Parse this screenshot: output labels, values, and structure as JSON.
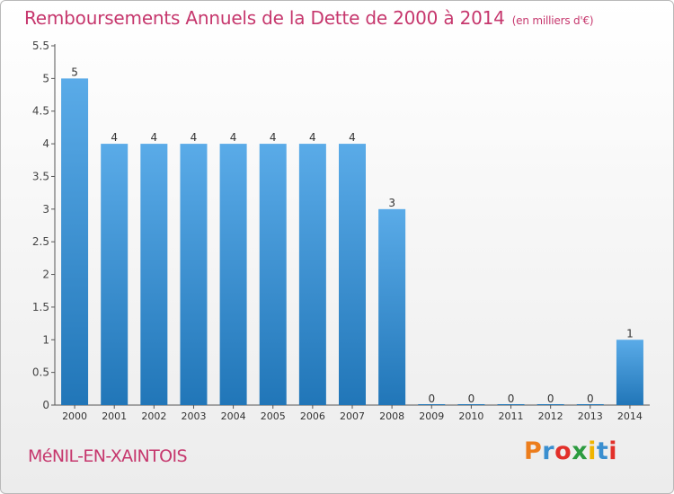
{
  "header": {
    "title": "Remboursements Annuels de la Dette de 2000 à 2014",
    "unit_note": "(en milliers d'€)"
  },
  "footer": {
    "commune": "MéNIL-EN-XAINTOIS",
    "logo_text": "Proxiti",
    "logo_colors": [
      "#ec7d1c",
      "#3a8fd0",
      "#e2302a",
      "#2c9b3f",
      "#f0b400",
      "#3a8fd0",
      "#e2302a"
    ]
  },
  "colors": {
    "bar_top": "#5aabe8",
    "bar_bottom": "#2176b8",
    "title": "#c6376d",
    "axis": "#555555"
  },
  "chart_data": {
    "type": "bar",
    "title": "Remboursements Annuels de la Dette de 2000 à 2014",
    "xlabel": "",
    "ylabel": "",
    "ylim": [
      0,
      5.5
    ],
    "grid": false,
    "y_ticks": [
      "0",
      "0.5",
      "1",
      "1.5",
      "2",
      "2.5",
      "3",
      "3.5",
      "4",
      "4.5",
      "5",
      "5.5"
    ],
    "categories": [
      "2000",
      "2001",
      "2002",
      "2003",
      "2004",
      "2005",
      "2006",
      "2007",
      "2008",
      "2009",
      "2010",
      "2011",
      "2012",
      "2013",
      "2014"
    ],
    "values": [
      5,
      4,
      4,
      4,
      4,
      4,
      4,
      4,
      3,
      0,
      0,
      0,
      0,
      0,
      1
    ],
    "data_labels": [
      "5",
      "4",
      "4",
      "4",
      "4",
      "4",
      "4",
      "4",
      "3",
      "0",
      "0",
      "0",
      "0",
      "0",
      "1"
    ]
  }
}
